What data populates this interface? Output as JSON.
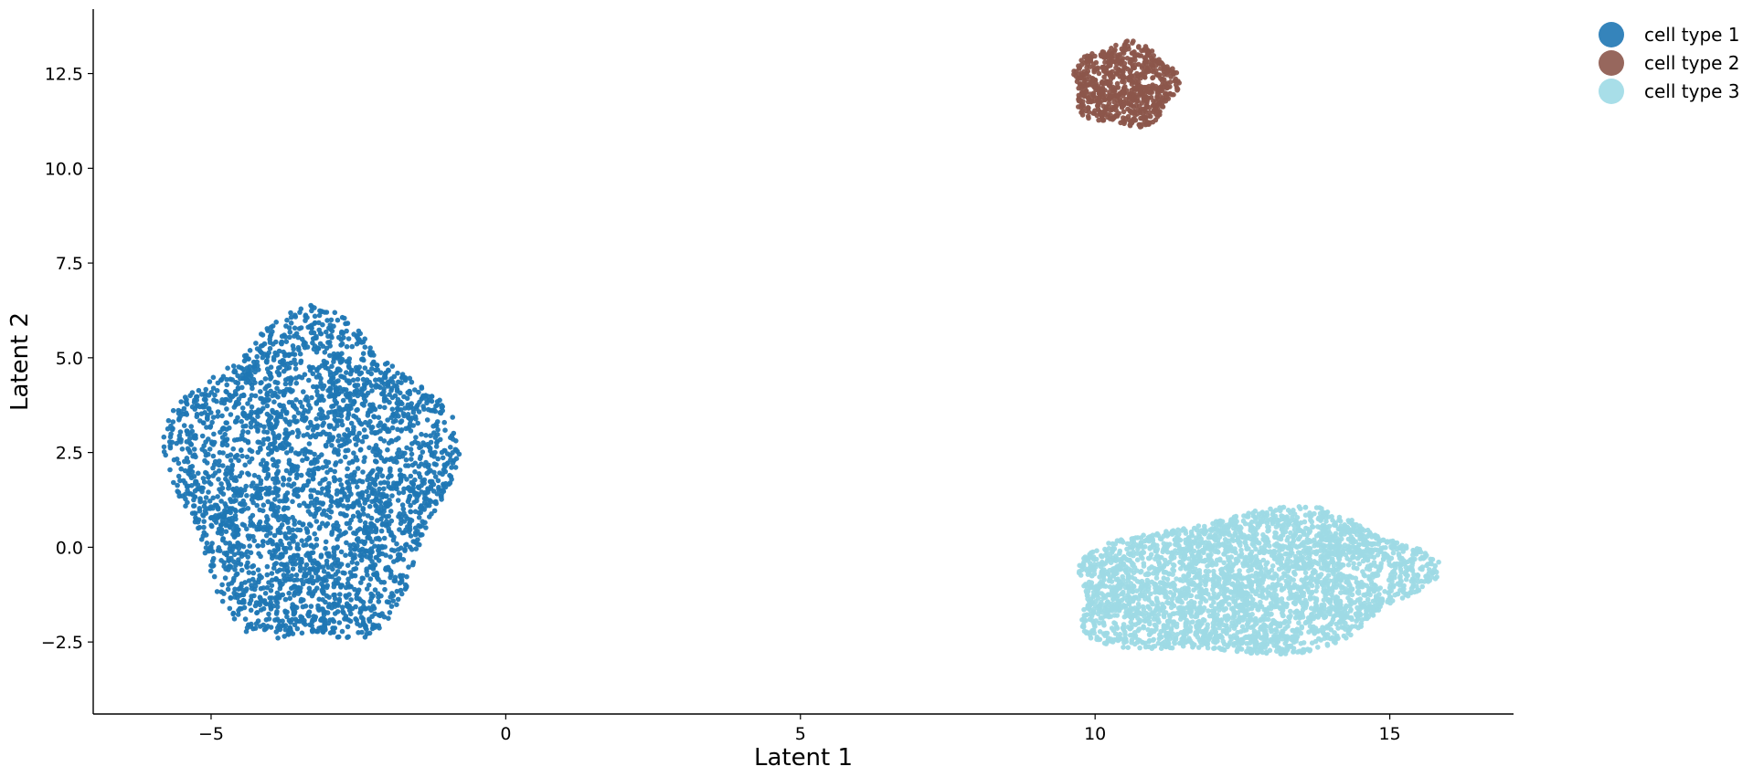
{
  "chart_data": {
    "type": "scatter",
    "title": "",
    "xlabel": "Latent 1",
    "ylabel": "Latent 2",
    "xlim": [
      -7,
      17.1
    ],
    "ylim": [
      -4.4,
      14.2
    ],
    "xticks": [
      -5,
      0,
      5,
      10,
      15
    ],
    "xtick_labels": [
      "−5",
      "0",
      "5",
      "10",
      "15"
    ],
    "yticks": [
      -2.5,
      0.0,
      2.5,
      5.0,
      7.5,
      10.0,
      12.5
    ],
    "ytick_labels": [
      "−2.5",
      "0.0",
      "2.5",
      "5.0",
      "7.5",
      "10.0",
      "12.5"
    ],
    "grid": false,
    "legend_position": "top-right, outside plot",
    "series": [
      {
        "name": "cell type 1",
        "color": "#1f77b4",
        "approx_count": 3000,
        "cluster_center": [
          -3.2,
          1.7
        ],
        "x_range": [
          -6.0,
          -0.6
        ],
        "y_range": [
          -3.3,
          6.7
        ]
      },
      {
        "name": "cell type 2",
        "color": "#8c564b",
        "approx_count": 700,
        "cluster_center": [
          10.5,
          12.2
        ],
        "x_range": [
          9.5,
          11.5
        ],
        "y_range": [
          10.8,
          13.4
        ]
      },
      {
        "name": "cell type 3",
        "color": "#9edae5",
        "approx_count": 3200,
        "cluster_center": [
          12.6,
          -0.9
        ],
        "x_range": [
          9.4,
          15.9
        ],
        "y_range": [
          -3.5,
          1.4
        ]
      }
    ]
  }
}
